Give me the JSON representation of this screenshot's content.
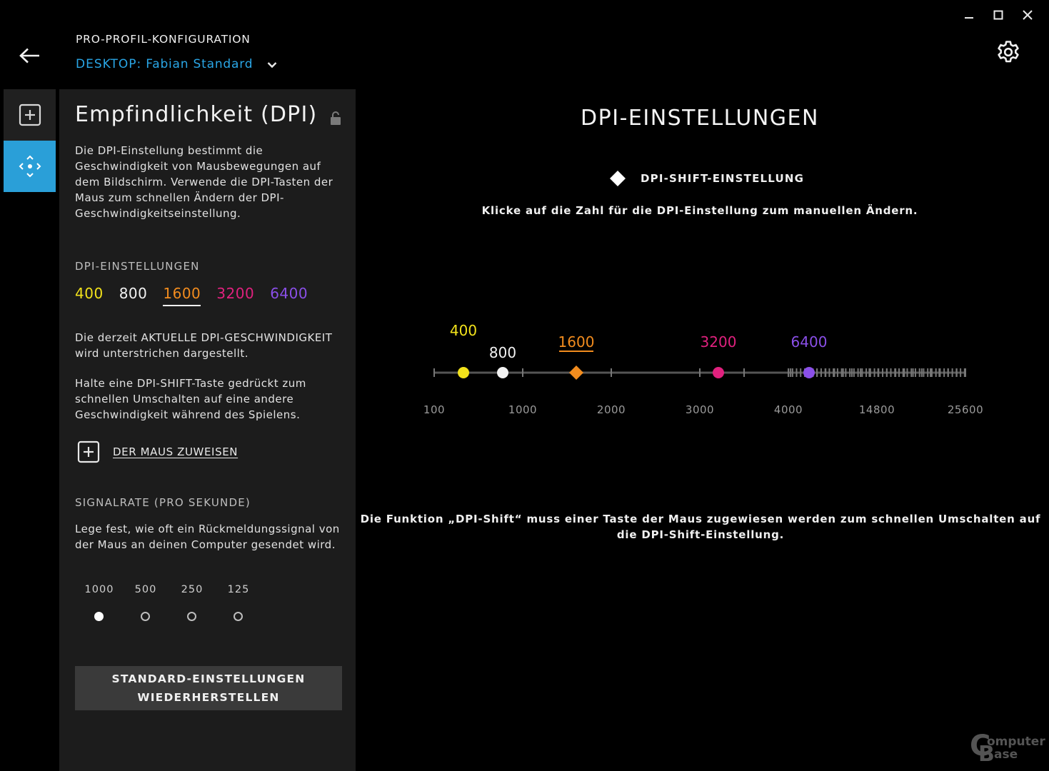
{
  "header": {
    "title": "PRO-PROFIL-KONFIGURATION",
    "profile_prefix": "DESKTOP:",
    "profile_name": "Fabian Standard"
  },
  "panel": {
    "title": "Empfindlichkeit (DPI)",
    "description": "Die DPI-Einstellung bestimmt die Geschwindigkeit von Mausbewegungen auf dem Bildschirm. Verwende die DPI-Tasten der Maus zum schnellen Ändern der DPI-Geschwindigkeitseinstellung.",
    "dpi_section_label": "DPI-EINSTELLUNGEN",
    "dpi_values": [
      {
        "label": "400",
        "color": "#f2e21b"
      },
      {
        "label": "800",
        "color": "#f2f2f2"
      },
      {
        "label": "1600",
        "color": "#f28c1e"
      },
      {
        "label": "3200",
        "color": "#e0217e"
      },
      {
        "label": "6400",
        "color": "#8a4fe8"
      }
    ],
    "current_dpi_index": 2,
    "current_note": "Die derzeit AKTUELLE DPI-GESCHWINDIGKEIT wird unterstrichen dargestellt.",
    "shift_note": "Halte eine DPI-SHIFT-Taste gedrückt zum schnellen Umschalten auf eine andere Geschwindigkeit während des Spielens.",
    "assign_label": "DER MAUS ZUWEISEN",
    "rate_section_label": "SIGNALRATE (PRO SEKUNDE)",
    "rate_description": "Lege fest, wie oft ein Rückmeldungssignal von der Maus an deinen Computer gesendet wird.",
    "rates": [
      {
        "label": "1000",
        "selected": true
      },
      {
        "label": "500",
        "selected": false
      },
      {
        "label": "250",
        "selected": false
      },
      {
        "label": "125",
        "selected": false
      }
    ],
    "reset_line1": "STANDARD-EINSTELLUNGEN",
    "reset_line2": "WIEDERHERSTELLEN"
  },
  "main": {
    "title": "DPI-EINSTELLUNGEN",
    "shift_label": "DPI-SHIFT-EINSTELLUNG",
    "hint": "Klicke auf die Zahl für die DPI-Einstellung zum manuellen Ändern.",
    "footer": "Die Funktion „DPI-Shift“ muss einer Taste der Maus zugewiesen werden zum schnellen Umschalten auf die DPI-Shift-Einstellung."
  },
  "slider": {
    "axis_labels": [
      "100",
      "1000",
      "2000",
      "3000",
      "4000",
      "14800",
      "25600"
    ],
    "points": [
      {
        "label": "400",
        "dpi": 400,
        "color": "#f2e21b",
        "shape": "circle"
      },
      {
        "label": "800",
        "dpi": 800,
        "color": "#f2f2f2",
        "shape": "circle"
      },
      {
        "label": "1600",
        "dpi": 1600,
        "color": "#f28c1e",
        "shape": "diamond",
        "current": true
      },
      {
        "label": "3200",
        "dpi": 3200,
        "color": "#e0217e",
        "shape": "circle"
      },
      {
        "label": "6400",
        "dpi": 6400,
        "color": "#8a4fe8",
        "shape": "circle"
      }
    ]
  },
  "icons": {
    "back": "arrow-left-icon",
    "gear": "gear-icon",
    "chevron": "chevron-down-icon",
    "lock": "lock-open-icon",
    "add": "plus-square-icon",
    "sensitivity": "move-arrows-icon",
    "shift": "diamond-icon"
  },
  "watermark": {
    "line1": "Computer",
    "line2": "Base"
  }
}
